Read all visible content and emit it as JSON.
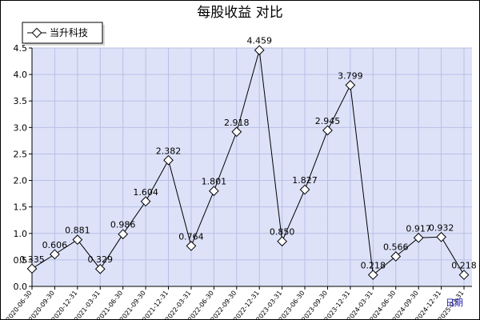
{
  "chart_data": {
    "type": "line",
    "title": "每股收益 对比",
    "legend": [
      "当升科技"
    ],
    "x_tick_labels": [
      "2020-06-30",
      "2020-09-30",
      "2020-12-31",
      "2021-03-31",
      "2021-06-30",
      "2021-09-30",
      "2021-12-31",
      "2022-03-31",
      "2022-06-30",
      "2022-09-30",
      "2022-12-31",
      "2023-03-31",
      "2023-06-30",
      "2023-09-30",
      "2023-12-31",
      "2024-03-31",
      "2024-06-30",
      "2024-09-30",
      "2024-12-31",
      "2025-03-31"
    ],
    "corner_label": "日期",
    "ylim": [
      0,
      4.5
    ],
    "y_ticks": [
      "0.0",
      "0.5",
      "1.0",
      "1.5",
      "2.0",
      "2.5",
      "3.0",
      "3.5",
      "4.0",
      "4.5"
    ],
    "grid": true,
    "series": [
      {
        "name": "当升科技",
        "values": [
          0.335,
          0.606,
          0.881,
          0.329,
          0.986,
          1.604,
          2.382,
          0.764,
          1.801,
          2.918,
          4.459,
          0.85,
          1.827,
          2.945,
          3.799,
          0.218,
          0.566,
          0.917,
          0.932,
          0.218
        ],
        "labels": [
          "0.335",
          "0.606",
          "0.881",
          "0.329",
          "0.986",
          "1.604",
          "2.382",
          "0.764",
          "1.801",
          "2.918",
          "4.459",
          "0.850",
          "1.827",
          "2.945",
          "3.799",
          "0.218",
          "0.566",
          "0.917",
          "0.932",
          "0.218"
        ]
      }
    ]
  },
  "colors": {
    "plot_background": "#dde2f8",
    "grid": "#b9bfe6",
    "line": "#000000",
    "marker_fill": "#ffffff",
    "corner_label": "#1a1ab0"
  }
}
